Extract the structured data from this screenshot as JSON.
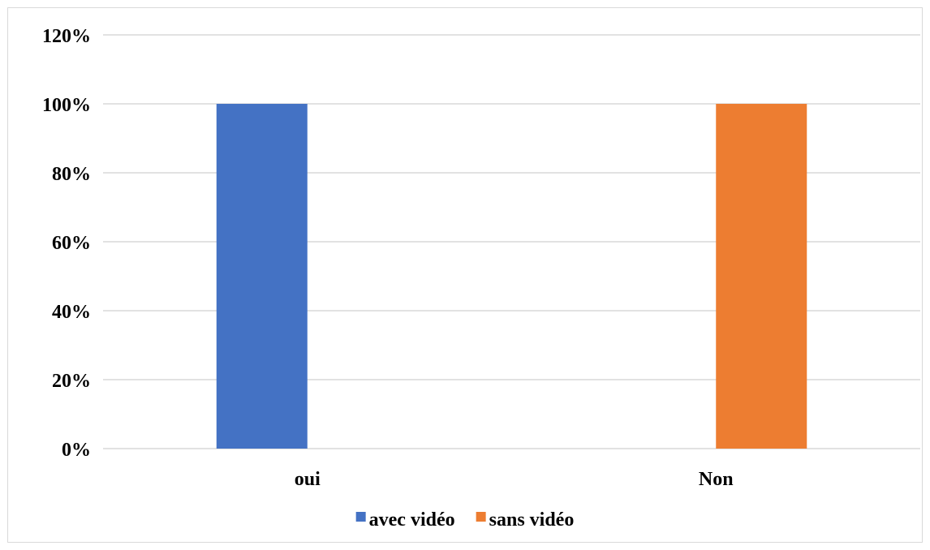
{
  "chart_data": {
    "type": "bar",
    "categories": [
      "oui",
      "Non"
    ],
    "series": [
      {
        "name": "avec vidéo",
        "values": [
          1.0,
          0.0
        ],
        "color": "#4472C4"
      },
      {
        "name": "sans vidéo",
        "values": [
          0.0,
          1.0
        ],
        "color": "#ED7D31"
      }
    ],
    "ylim": [
      0,
      1.2
    ],
    "yticks": [
      0,
      0.2,
      0.4,
      0.6,
      0.8,
      1.0,
      1.2
    ],
    "ytick_labels": [
      "0%",
      "20%",
      "40%",
      "60%",
      "80%",
      "100%",
      "120%"
    ],
    "grid": true,
    "gridline_color": "#d9d9d9",
    "legend_position": "bottom"
  }
}
